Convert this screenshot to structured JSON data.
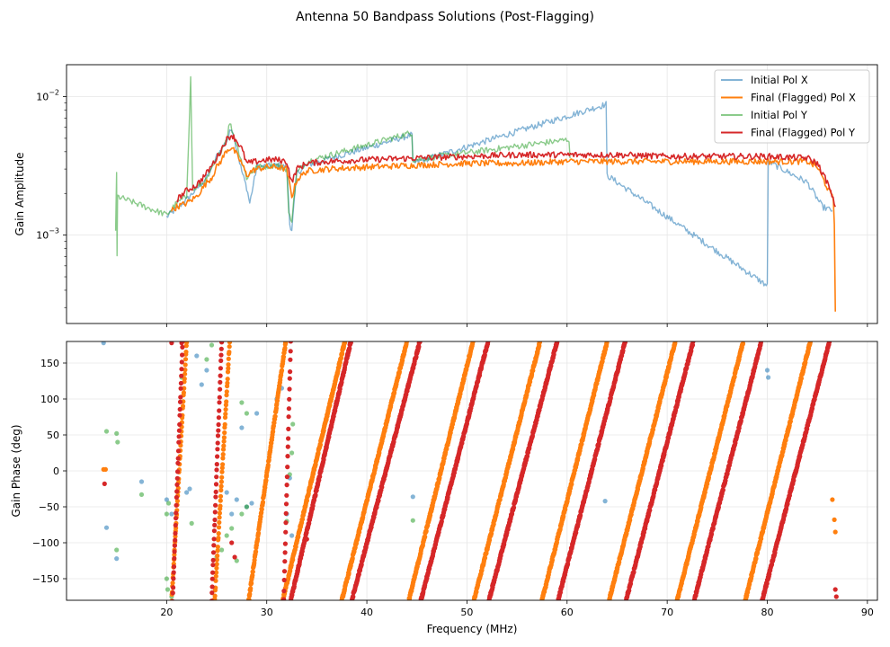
{
  "figure": {
    "title": "Antenna 50 Bandpass Solutions (Post-Flagging)"
  },
  "chart_data": [
    {
      "type": "line",
      "panel": "top",
      "ylabel": "Gain Amplitude",
      "yscale": "log",
      "ylim": [
        0.00023,
        0.017
      ],
      "xlim": [
        10,
        91
      ],
      "y_ticks": [
        {
          "value": 0.001,
          "base": "10",
          "exp": "−3"
        },
        {
          "value": 0.01,
          "base": "10",
          "exp": "−2"
        }
      ],
      "grid": true,
      "legend_position": "top-right",
      "series": [
        {
          "name": "Initial Pol X",
          "color": "#1f77b4",
          "opacity": 0.55,
          "points": [
            [
              20.0,
              0.00135
            ],
            [
              22,
              0.0018
            ],
            [
              24,
              0.0026
            ],
            [
              25,
              0.0037
            ],
            [
              26,
              0.0048
            ],
            [
              26.5,
              0.006
            ],
            [
              27,
              0.0042
            ],
            [
              27.5,
              0.0029
            ],
            [
              28,
              0.0022
            ],
            [
              28.3,
              0.0017
            ],
            [
              29,
              0.0031
            ],
            [
              31,
              0.0032
            ],
            [
              32,
              0.0031
            ],
            [
              32.3,
              0.0012
            ],
            [
              32.5,
              0.0011
            ],
            [
              33,
              0.0028
            ],
            [
              34,
              0.0032
            ],
            [
              44.5,
              0.0053
            ],
            [
              44.6,
              0.0033
            ],
            [
              63.9,
              0.0088
            ],
            [
              64,
              0.0027
            ],
            [
              80,
              0.00043
            ],
            [
              80.1,
              0.0034
            ],
            [
              84,
              0.0024
            ],
            [
              85.5,
              0.0016
            ],
            [
              86.5,
              0.0015
            ]
          ]
        },
        {
          "name": "Final (Flagged) Pol X",
          "color": "#ff7f0e",
          "opacity": 1,
          "points": [
            [
              20.5,
              0.0015
            ],
            [
              21,
              0.0016
            ],
            [
              22,
              0.0017
            ],
            [
              23,
              0.0019
            ],
            [
              24,
              0.0024
            ],
            [
              24.5,
              0.0026
            ],
            [
              25,
              0.0031
            ],
            [
              25.5,
              0.0035
            ],
            [
              26,
              0.0041
            ],
            [
              26.5,
              0.0043
            ],
            [
              27,
              0.0038
            ],
            [
              27.5,
              0.0033
            ],
            [
              28,
              0.0027
            ],
            [
              28.5,
              0.0029
            ],
            [
              29,
              0.003
            ],
            [
              30,
              0.0031
            ],
            [
              31,
              0.0031
            ],
            [
              32,
              0.003
            ],
            [
              32.5,
              0.0019
            ],
            [
              33,
              0.0025
            ],
            [
              34,
              0.0029
            ],
            [
              36,
              0.003
            ],
            [
              40,
              0.0031
            ],
            [
              45,
              0.0032
            ],
            [
              50,
              0.0033
            ],
            [
              55,
              0.0033
            ],
            [
              60,
              0.0034
            ],
            [
              65,
              0.0034
            ],
            [
              70,
              0.0034
            ],
            [
              75,
              0.0034
            ],
            [
              80,
              0.0034
            ],
            [
              84,
              0.0034
            ],
            [
              85,
              0.0031
            ],
            [
              86,
              0.0022
            ],
            [
              86.6,
              0.0018
            ],
            [
              86.7,
              0.0012
            ],
            [
              86.8,
              0.00028
            ]
          ]
        },
        {
          "name": "Initial Pol Y",
          "color": "#2ca02c",
          "opacity": 0.55,
          "points": [
            [
              14.9,
              0.0011
            ],
            [
              15.0,
              0.0027
            ],
            [
              15.05,
              0.0007
            ],
            [
              15.1,
              0.0019
            ],
            [
              20,
              0.0014
            ],
            [
              21,
              0.0017
            ],
            [
              22,
              0.0019
            ],
            [
              22.4,
              0.0135
            ],
            [
              22.6,
              0.0021
            ],
            [
              24,
              0.0025
            ],
            [
              25,
              0.0035
            ],
            [
              26,
              0.005
            ],
            [
              26.3,
              0.0065
            ],
            [
              27,
              0.0045
            ],
            [
              28,
              0.0026
            ],
            [
              29,
              0.0031
            ],
            [
              31,
              0.0032
            ],
            [
              32,
              0.003
            ],
            [
              32.2,
              0.0014
            ],
            [
              32.5,
              0.0013
            ],
            [
              33,
              0.0028
            ],
            [
              34,
              0.0034
            ],
            [
              44.5,
              0.0055
            ],
            [
              44.6,
              0.0035
            ],
            [
              60.2,
              0.0049
            ],
            [
              60.3,
              0.0036
            ]
          ]
        },
        {
          "name": "Final (Flagged) Pol Y",
          "color": "#d62728",
          "opacity": 1,
          "points": [
            [
              21,
              0.0018
            ],
            [
              22,
              0.0021
            ],
            [
              23,
              0.0023
            ],
            [
              24,
              0.0028
            ],
            [
              25,
              0.0036
            ],
            [
              25.5,
              0.0042
            ],
            [
              26,
              0.0049
            ],
            [
              26.5,
              0.0053
            ],
            [
              27,
              0.0048
            ],
            [
              27.5,
              0.0042
            ],
            [
              28,
              0.0033
            ],
            [
              29,
              0.0034
            ],
            [
              30,
              0.0035
            ],
            [
              31,
              0.0035
            ],
            [
              32,
              0.0034
            ],
            [
              32.5,
              0.0024
            ],
            [
              33,
              0.003
            ],
            [
              34,
              0.0033
            ],
            [
              36,
              0.0034
            ],
            [
              40,
              0.0035
            ],
            [
              45,
              0.0036
            ],
            [
              50,
              0.0037
            ],
            [
              55,
              0.0038
            ],
            [
              60,
              0.0038
            ],
            [
              65,
              0.0038
            ],
            [
              70,
              0.0037
            ],
            [
              75,
              0.0037
            ],
            [
              80,
              0.0037
            ],
            [
              84,
              0.0036
            ],
            [
              85,
              0.0033
            ],
            [
              86,
              0.0024
            ],
            [
              86.8,
              0.0016
            ]
          ]
        }
      ]
    },
    {
      "type": "scatter",
      "panel": "bottom",
      "xlabel": "Frequency (MHz)",
      "ylabel": "Gain Phase (deg)",
      "xlim": [
        10,
        91
      ],
      "ylim": [
        -180,
        180
      ],
      "x_ticks": [
        20,
        30,
        40,
        50,
        60,
        70,
        80,
        90
      ],
      "y_ticks": [
        -150,
        -100,
        -50,
        0,
        50,
        100,
        150
      ],
      "grid": true,
      "series": [
        {
          "name": "Initial Pol X",
          "color": "#1f77b4",
          "opacity": 0.55,
          "points": [
            [
              13.7,
              178
            ],
            [
              14,
              -79
            ],
            [
              15,
              -122
            ],
            [
              17.5,
              -15
            ],
            [
              20,
              -40
            ],
            [
              20.5,
              -60
            ],
            [
              22,
              -30
            ],
            [
              22.3,
              -25
            ],
            [
              23,
              160
            ],
            [
              23.5,
              120
            ],
            [
              24,
              140
            ],
            [
              26,
              -30
            ],
            [
              26.5,
              -60
            ],
            [
              27,
              -40
            ],
            [
              27.5,
              60
            ],
            [
              28,
              -50
            ],
            [
              28.5,
              -45
            ],
            [
              29,
              80
            ],
            [
              31,
              100
            ],
            [
              31.5,
              115
            ],
            [
              32,
              -60
            ],
            [
              32.3,
              -10
            ],
            [
              32.5,
              -90
            ],
            [
              44.6,
              -36
            ],
            [
              63.8,
              -42
            ],
            [
              80,
              140
            ],
            [
              80.1,
              130
            ]
          ]
        },
        {
          "name": "Final (Flagged) Pol X",
          "color": "#ff7f0e",
          "opacity": 1,
          "wraps": [
            [
              20.5,
              22.0
            ],
            [
              24.8,
              26.3
            ],
            [
              28.2,
              31.9
            ],
            [
              31.6,
              37.8
            ],
            [
              37.5,
              44.0
            ],
            [
              44.2,
              50.6
            ],
            [
              50.7,
              57.3
            ],
            [
              57.5,
              64.0
            ],
            [
              64.2,
              70.8
            ],
            [
              71.0,
              77.6
            ],
            [
              77.8,
              84.3
            ]
          ],
          "points": [
            [
              13.7,
              2
            ],
            [
              13.9,
              2
            ],
            [
              86.5,
              -40
            ],
            [
              86.7,
              -68
            ],
            [
              86.8,
              -85
            ]
          ]
        },
        {
          "name": "Initial Pol Y",
          "color": "#2ca02c",
          "opacity": 0.55,
          "points": [
            [
              14,
              55
            ],
            [
              15,
              52
            ],
            [
              15.1,
              40
            ],
            [
              15,
              -110
            ],
            [
              17.5,
              -33
            ],
            [
              20,
              -60
            ],
            [
              20.2,
              -45
            ],
            [
              20,
              -150
            ],
            [
              20.1,
              -165
            ],
            [
              20.5,
              -175
            ],
            [
              22.5,
              -73
            ],
            [
              21.5,
              130
            ],
            [
              24,
              155
            ],
            [
              24.5,
              175
            ],
            [
              25,
              -120
            ],
            [
              25.5,
              -110
            ],
            [
              26,
              -90
            ],
            [
              26.5,
              -80
            ],
            [
              27,
              -125
            ],
            [
              27.5,
              -60
            ],
            [
              28,
              -50
            ],
            [
              27.5,
              95
            ],
            [
              28,
              80
            ],
            [
              32,
              -70
            ],
            [
              32.3,
              -5
            ],
            [
              32.5,
              25
            ],
            [
              32.6,
              65
            ],
            [
              44.6,
              -69
            ]
          ]
        },
        {
          "name": "Final (Flagged) Pol Y",
          "color": "#d62728",
          "opacity": 1,
          "wraps": [
            [
              20.6,
              21.6
            ],
            [
              24.5,
              25.5
            ],
            [
              31.7,
              32.4
            ],
            [
              32.4,
              38.4
            ],
            [
              38.5,
              45.3
            ],
            [
              45.4,
              52.1
            ],
            [
              52.2,
              59.0
            ],
            [
              59.1,
              65.8
            ],
            [
              65.9,
              72.6
            ],
            [
              72.7,
              79.4
            ],
            [
              79.5,
              86.2
            ]
          ],
          "points": [
            [
              13.8,
              -18
            ],
            [
              20.5,
              178
            ],
            [
              21.5,
              178
            ],
            [
              26.5,
              -100
            ],
            [
              26.8,
              -120
            ],
            [
              34,
              -95
            ],
            [
              86.8,
              -165
            ],
            [
              86.9,
              -175
            ]
          ]
        }
      ]
    }
  ]
}
